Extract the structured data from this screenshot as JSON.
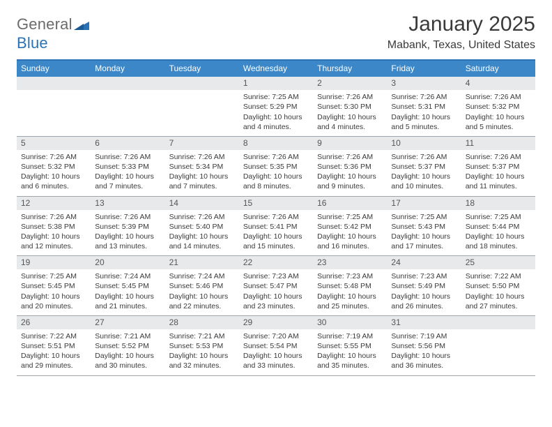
{
  "logo": {
    "text_general": "General",
    "text_blue": "Blue"
  },
  "title": "January 2025",
  "location": "Mabank, Texas, United States",
  "colors": {
    "header_bg": "#3b87c8",
    "header_border": "#2a72b5",
    "daynum_bg": "#e8e9ea",
    "week_divider": "#9fa6ab",
    "text": "#3a3a3a",
    "logo_gray": "#6b6b6b",
    "logo_blue": "#2a72b5"
  },
  "weekdays": [
    "Sunday",
    "Monday",
    "Tuesday",
    "Wednesday",
    "Thursday",
    "Friday",
    "Saturday"
  ],
  "weeks": [
    [
      {
        "n": "",
        "sr": "",
        "ss": "",
        "dl": ""
      },
      {
        "n": "",
        "sr": "",
        "ss": "",
        "dl": ""
      },
      {
        "n": "",
        "sr": "",
        "ss": "",
        "dl": ""
      },
      {
        "n": "1",
        "sr": "Sunrise: 7:25 AM",
        "ss": "Sunset: 5:29 PM",
        "dl": "Daylight: 10 hours and 4 minutes."
      },
      {
        "n": "2",
        "sr": "Sunrise: 7:26 AM",
        "ss": "Sunset: 5:30 PM",
        "dl": "Daylight: 10 hours and 4 minutes."
      },
      {
        "n": "3",
        "sr": "Sunrise: 7:26 AM",
        "ss": "Sunset: 5:31 PM",
        "dl": "Daylight: 10 hours and 5 minutes."
      },
      {
        "n": "4",
        "sr": "Sunrise: 7:26 AM",
        "ss": "Sunset: 5:32 PM",
        "dl": "Daylight: 10 hours and 5 minutes."
      }
    ],
    [
      {
        "n": "5",
        "sr": "Sunrise: 7:26 AM",
        "ss": "Sunset: 5:32 PM",
        "dl": "Daylight: 10 hours and 6 minutes."
      },
      {
        "n": "6",
        "sr": "Sunrise: 7:26 AM",
        "ss": "Sunset: 5:33 PM",
        "dl": "Daylight: 10 hours and 7 minutes."
      },
      {
        "n": "7",
        "sr": "Sunrise: 7:26 AM",
        "ss": "Sunset: 5:34 PM",
        "dl": "Daylight: 10 hours and 7 minutes."
      },
      {
        "n": "8",
        "sr": "Sunrise: 7:26 AM",
        "ss": "Sunset: 5:35 PM",
        "dl": "Daylight: 10 hours and 8 minutes."
      },
      {
        "n": "9",
        "sr": "Sunrise: 7:26 AM",
        "ss": "Sunset: 5:36 PM",
        "dl": "Daylight: 10 hours and 9 minutes."
      },
      {
        "n": "10",
        "sr": "Sunrise: 7:26 AM",
        "ss": "Sunset: 5:37 PM",
        "dl": "Daylight: 10 hours and 10 minutes."
      },
      {
        "n": "11",
        "sr": "Sunrise: 7:26 AM",
        "ss": "Sunset: 5:37 PM",
        "dl": "Daylight: 10 hours and 11 minutes."
      }
    ],
    [
      {
        "n": "12",
        "sr": "Sunrise: 7:26 AM",
        "ss": "Sunset: 5:38 PM",
        "dl": "Daylight: 10 hours and 12 minutes."
      },
      {
        "n": "13",
        "sr": "Sunrise: 7:26 AM",
        "ss": "Sunset: 5:39 PM",
        "dl": "Daylight: 10 hours and 13 minutes."
      },
      {
        "n": "14",
        "sr": "Sunrise: 7:26 AM",
        "ss": "Sunset: 5:40 PM",
        "dl": "Daylight: 10 hours and 14 minutes."
      },
      {
        "n": "15",
        "sr": "Sunrise: 7:26 AM",
        "ss": "Sunset: 5:41 PM",
        "dl": "Daylight: 10 hours and 15 minutes."
      },
      {
        "n": "16",
        "sr": "Sunrise: 7:25 AM",
        "ss": "Sunset: 5:42 PM",
        "dl": "Daylight: 10 hours and 16 minutes."
      },
      {
        "n": "17",
        "sr": "Sunrise: 7:25 AM",
        "ss": "Sunset: 5:43 PM",
        "dl": "Daylight: 10 hours and 17 minutes."
      },
      {
        "n": "18",
        "sr": "Sunrise: 7:25 AM",
        "ss": "Sunset: 5:44 PM",
        "dl": "Daylight: 10 hours and 18 minutes."
      }
    ],
    [
      {
        "n": "19",
        "sr": "Sunrise: 7:25 AM",
        "ss": "Sunset: 5:45 PM",
        "dl": "Daylight: 10 hours and 20 minutes."
      },
      {
        "n": "20",
        "sr": "Sunrise: 7:24 AM",
        "ss": "Sunset: 5:45 PM",
        "dl": "Daylight: 10 hours and 21 minutes."
      },
      {
        "n": "21",
        "sr": "Sunrise: 7:24 AM",
        "ss": "Sunset: 5:46 PM",
        "dl": "Daylight: 10 hours and 22 minutes."
      },
      {
        "n": "22",
        "sr": "Sunrise: 7:23 AM",
        "ss": "Sunset: 5:47 PM",
        "dl": "Daylight: 10 hours and 23 minutes."
      },
      {
        "n": "23",
        "sr": "Sunrise: 7:23 AM",
        "ss": "Sunset: 5:48 PM",
        "dl": "Daylight: 10 hours and 25 minutes."
      },
      {
        "n": "24",
        "sr": "Sunrise: 7:23 AM",
        "ss": "Sunset: 5:49 PM",
        "dl": "Daylight: 10 hours and 26 minutes."
      },
      {
        "n": "25",
        "sr": "Sunrise: 7:22 AM",
        "ss": "Sunset: 5:50 PM",
        "dl": "Daylight: 10 hours and 27 minutes."
      }
    ],
    [
      {
        "n": "26",
        "sr": "Sunrise: 7:22 AM",
        "ss": "Sunset: 5:51 PM",
        "dl": "Daylight: 10 hours and 29 minutes."
      },
      {
        "n": "27",
        "sr": "Sunrise: 7:21 AM",
        "ss": "Sunset: 5:52 PM",
        "dl": "Daylight: 10 hours and 30 minutes."
      },
      {
        "n": "28",
        "sr": "Sunrise: 7:21 AM",
        "ss": "Sunset: 5:53 PM",
        "dl": "Daylight: 10 hours and 32 minutes."
      },
      {
        "n": "29",
        "sr": "Sunrise: 7:20 AM",
        "ss": "Sunset: 5:54 PM",
        "dl": "Daylight: 10 hours and 33 minutes."
      },
      {
        "n": "30",
        "sr": "Sunrise: 7:19 AM",
        "ss": "Sunset: 5:55 PM",
        "dl": "Daylight: 10 hours and 35 minutes."
      },
      {
        "n": "31",
        "sr": "Sunrise: 7:19 AM",
        "ss": "Sunset: 5:56 PM",
        "dl": "Daylight: 10 hours and 36 minutes."
      },
      {
        "n": "",
        "sr": "",
        "ss": "",
        "dl": ""
      }
    ]
  ]
}
